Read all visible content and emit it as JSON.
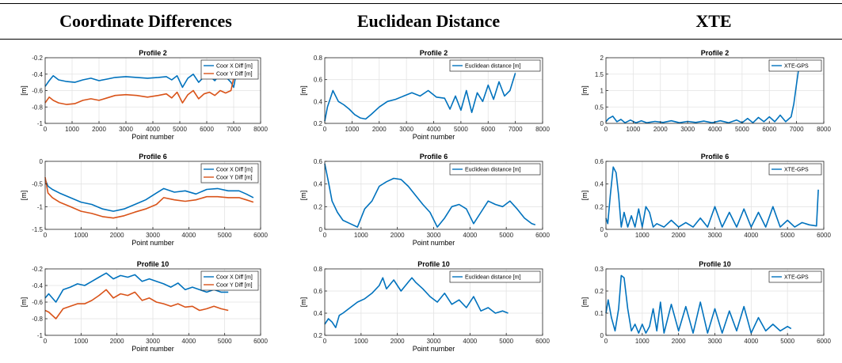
{
  "columns": [
    "Coordinate Differences",
    "Euclidean Distance",
    "XTE"
  ],
  "colors": {
    "blue": "#0072BD",
    "orange": "#D95319",
    "grid": "#e3e3e3",
    "axis": "#262626"
  },
  "chart_data": [
    {
      "type": "line",
      "title": "Profile 2",
      "xlabel": "Point number",
      "ylabel": "[m]",
      "xlim": [
        0,
        8000
      ],
      "ylim": [
        -1,
        -0.2
      ],
      "xticks": [
        0,
        1000,
        2000,
        3000,
        4000,
        5000,
        6000,
        7000,
        8000
      ],
      "yticks": [
        -1,
        -0.8,
        -0.6,
        -0.4,
        -0.2
      ],
      "legend_position": "top-right",
      "grid": true,
      "series": [
        {
          "name": "Coor X Diff [m]",
          "color": "#0072BD",
          "x": [
            0,
            150,
            300,
            500,
            800,
            1100,
            1400,
            1700,
            2000,
            2300,
            2600,
            3000,
            3400,
            3800,
            4200,
            4500,
            4700,
            4900,
            5100,
            5300,
            5500,
            5700,
            5900,
            6100,
            6300,
            6500,
            6700,
            6900,
            7000,
            7100
          ],
          "y": [
            -0.55,
            -0.48,
            -0.42,
            -0.47,
            -0.49,
            -0.5,
            -0.47,
            -0.45,
            -0.48,
            -0.46,
            -0.44,
            -0.43,
            -0.44,
            -0.45,
            -0.44,
            -0.43,
            -0.47,
            -0.42,
            -0.56,
            -0.45,
            -0.4,
            -0.5,
            -0.43,
            -0.42,
            -0.48,
            -0.4,
            -0.43,
            -0.5,
            -0.56,
            -0.38
          ]
        },
        {
          "name": "Coor Y Diff [m]",
          "color": "#D95319",
          "x": [
            0,
            150,
            300,
            500,
            800,
            1100,
            1400,
            1700,
            2000,
            2300,
            2600,
            3000,
            3400,
            3800,
            4200,
            4500,
            4700,
            4900,
            5100,
            5300,
            5500,
            5700,
            5900,
            6100,
            6300,
            6500,
            6700,
            6900,
            7000,
            7100
          ],
          "y": [
            -0.75,
            -0.68,
            -0.72,
            -0.75,
            -0.77,
            -0.76,
            -0.72,
            -0.7,
            -0.72,
            -0.69,
            -0.66,
            -0.65,
            -0.66,
            -0.68,
            -0.66,
            -0.64,
            -0.69,
            -0.62,
            -0.75,
            -0.65,
            -0.6,
            -0.7,
            -0.64,
            -0.62,
            -0.66,
            -0.6,
            -0.63,
            -0.6,
            -0.45,
            -0.26
          ]
        }
      ]
    },
    {
      "type": "line",
      "title": "Profile 2",
      "xlabel": "Point number",
      "ylabel": "[m]",
      "xlim": [
        0,
        8000
      ],
      "ylim": [
        0.2,
        0.8
      ],
      "xticks": [
        0,
        1000,
        2000,
        3000,
        4000,
        5000,
        6000,
        7000,
        8000
      ],
      "yticks": [
        0.2,
        0.4,
        0.6,
        0.8
      ],
      "legend_position": "top-right",
      "grid": true,
      "series": [
        {
          "name": "Euclidean distance [m]",
          "color": "#0072BD",
          "x": [
            0,
            100,
            300,
            500,
            700,
            900,
            1100,
            1300,
            1500,
            1700,
            2000,
            2300,
            2600,
            2900,
            3200,
            3500,
            3800,
            4100,
            4400,
            4600,
            4800,
            5000,
            5200,
            5400,
            5600,
            5800,
            6000,
            6200,
            6400,
            6600,
            6800,
            7000
          ],
          "y": [
            0.22,
            0.35,
            0.5,
            0.4,
            0.37,
            0.33,
            0.28,
            0.25,
            0.24,
            0.28,
            0.35,
            0.4,
            0.42,
            0.45,
            0.48,
            0.45,
            0.5,
            0.44,
            0.43,
            0.33,
            0.45,
            0.32,
            0.5,
            0.3,
            0.48,
            0.4,
            0.55,
            0.42,
            0.58,
            0.45,
            0.5,
            0.66
          ]
        }
      ]
    },
    {
      "type": "line",
      "title": "Profile 2",
      "xlabel": "",
      "ylabel": "[m]",
      "xlim": [
        0,
        8000
      ],
      "ylim": [
        0,
        2
      ],
      "xticks": [
        0,
        1000,
        2000,
        3000,
        4000,
        5000,
        6000,
        7000,
        8000
      ],
      "yticks": [
        0,
        0.5,
        1,
        1.5,
        2
      ],
      "legend_position": "top-right",
      "grid": true,
      "series": [
        {
          "name": "XTE-GPS",
          "color": "#0072BD",
          "x": [
            0,
            100,
            250,
            400,
            550,
            700,
            900,
            1100,
            1300,
            1500,
            1800,
            2100,
            2400,
            2700,
            3000,
            3300,
            3600,
            3900,
            4200,
            4500,
            4800,
            5000,
            5200,
            5400,
            5600,
            5800,
            6000,
            6200,
            6400,
            6600,
            6800,
            6900,
            7000,
            7100
          ],
          "y": [
            0.05,
            0.15,
            0.22,
            0.05,
            0.12,
            0.02,
            0.1,
            0.02,
            0.08,
            0.02,
            0.06,
            0.03,
            0.08,
            0.02,
            0.06,
            0.03,
            0.07,
            0.02,
            0.08,
            0.02,
            0.1,
            0.02,
            0.15,
            0.02,
            0.18,
            0.05,
            0.2,
            0.05,
            0.25,
            0.05,
            0.2,
            0.6,
            1.2,
            1.8
          ]
        }
      ]
    },
    {
      "type": "line",
      "title": "Profile 6",
      "xlabel": "Point number",
      "ylabel": "[m]",
      "xlim": [
        0,
        6000
      ],
      "ylim": [
        -1.5,
        0
      ],
      "xticks": [
        0,
        1000,
        2000,
        3000,
        4000,
        5000,
        6000
      ],
      "yticks": [
        -1.5,
        -1,
        -0.5,
        0
      ],
      "legend_position": "top-right",
      "grid": true,
      "series": [
        {
          "name": "Coor X Diff [m]",
          "color": "#0072BD",
          "x": [
            0,
            80,
            200,
            400,
            700,
            1000,
            1300,
            1600,
            1900,
            2200,
            2500,
            2800,
            3100,
            3300,
            3600,
            3900,
            4200,
            4500,
            4800,
            5100,
            5400,
            5600,
            5800
          ],
          "y": [
            -0.4,
            -0.55,
            -0.62,
            -0.7,
            -0.8,
            -0.9,
            -0.95,
            -1.05,
            -1.1,
            -1.05,
            -0.95,
            -0.85,
            -0.7,
            -0.6,
            -0.68,
            -0.65,
            -0.72,
            -0.62,
            -0.6,
            -0.65,
            -0.65,
            -0.72,
            -0.8
          ]
        },
        {
          "name": "Coor Y Diff [m]",
          "color": "#D95319",
          "x": [
            0,
            80,
            200,
            400,
            700,
            1000,
            1300,
            1600,
            1900,
            2200,
            2500,
            2800,
            3100,
            3300,
            3600,
            3900,
            4200,
            4500,
            4800,
            5100,
            5400,
            5600,
            5800
          ],
          "y": [
            -0.35,
            -0.7,
            -0.8,
            -0.9,
            -1.0,
            -1.1,
            -1.15,
            -1.22,
            -1.25,
            -1.2,
            -1.12,
            -1.05,
            -0.95,
            -0.8,
            -0.85,
            -0.88,
            -0.85,
            -0.78,
            -0.78,
            -0.8,
            -0.8,
            -0.85,
            -0.9
          ]
        }
      ]
    },
    {
      "type": "line",
      "title": "Profile 6",
      "xlabel": "Point number",
      "ylabel": "[m]",
      "xlim": [
        0,
        6000
      ],
      "ylim": [
        0,
        0.6
      ],
      "xticks": [
        0,
        1000,
        2000,
        3000,
        4000,
        5000,
        6000
      ],
      "yticks": [
        0,
        0.2,
        0.4,
        0.6
      ],
      "legend_position": "top-right",
      "grid": true,
      "series": [
        {
          "name": "Euclidean distance [m]",
          "color": "#0072BD",
          "x": [
            0,
            100,
            200,
            350,
            500,
            700,
            900,
            1100,
            1300,
            1500,
            1700,
            1900,
            2100,
            2300,
            2500,
            2700,
            2900,
            3100,
            3300,
            3500,
            3700,
            3900,
            4100,
            4300,
            4500,
            4700,
            4900,
            5100,
            5300,
            5500,
            5700,
            5800
          ],
          "y": [
            0.58,
            0.42,
            0.25,
            0.15,
            0.08,
            0.05,
            0.02,
            0.18,
            0.25,
            0.38,
            0.42,
            0.45,
            0.44,
            0.38,
            0.3,
            0.22,
            0.15,
            0.02,
            0.1,
            0.2,
            0.22,
            0.18,
            0.05,
            0.15,
            0.25,
            0.22,
            0.2,
            0.25,
            0.18,
            0.1,
            0.05,
            0.04
          ]
        }
      ]
    },
    {
      "type": "line",
      "title": "Profile 6",
      "xlabel": "",
      "ylabel": "[m]",
      "xlim": [
        0,
        6000
      ],
      "ylim": [
        0,
        0.6
      ],
      "xticks": [
        0,
        1000,
        2000,
        3000,
        4000,
        5000,
        6000
      ],
      "yticks": [
        0,
        0.2,
        0.4,
        0.6
      ],
      "legend_position": "top-right",
      "grid": true,
      "series": [
        {
          "name": "XTE-GPS",
          "color": "#0072BD",
          "x": [
            0,
            50,
            120,
            200,
            280,
            350,
            420,
            500,
            600,
            700,
            800,
            900,
            1000,
            1100,
            1200,
            1300,
            1400,
            1600,
            1800,
            2000,
            2200,
            2400,
            2600,
            2800,
            3000,
            3200,
            3400,
            3600,
            3800,
            4000,
            4200,
            4400,
            4600,
            4800,
            5000,
            5200,
            5400,
            5600,
            5800,
            5850
          ],
          "y": [
            0.1,
            0.05,
            0.3,
            0.55,
            0.5,
            0.3,
            0.02,
            0.15,
            0.02,
            0.12,
            0.02,
            0.18,
            0.02,
            0.2,
            0.15,
            0.02,
            0.05,
            0.02,
            0.08,
            0.02,
            0.06,
            0.02,
            0.1,
            0.02,
            0.2,
            0.02,
            0.15,
            0.02,
            0.18,
            0.02,
            0.15,
            0.02,
            0.2,
            0.02,
            0.08,
            0.02,
            0.06,
            0.04,
            0.03,
            0.35
          ]
        }
      ]
    },
    {
      "type": "line",
      "title": "Profile 10",
      "xlabel": "Point number",
      "ylabel": "[m]",
      "xlim": [
        0,
        6000
      ],
      "ylim": [
        -1,
        -0.2
      ],
      "xticks": [
        0,
        1000,
        2000,
        3000,
        4000,
        5000,
        6000
      ],
      "yticks": [
        -1,
        -0.8,
        -0.6,
        -0.4,
        -0.2
      ],
      "legend_position": "top-right",
      "grid": true,
      "series": [
        {
          "name": "Coor X Diff [m]",
          "color": "#0072BD",
          "x": [
            0,
            100,
            300,
            500,
            700,
            900,
            1100,
            1300,
            1500,
            1700,
            1900,
            2100,
            2300,
            2500,
            2700,
            2900,
            3100,
            3300,
            3500,
            3700,
            3900,
            4100,
            4300,
            4500,
            4700,
            4900,
            5100
          ],
          "y": [
            -0.55,
            -0.5,
            -0.6,
            -0.45,
            -0.42,
            -0.38,
            -0.4,
            -0.35,
            -0.3,
            -0.25,
            -0.32,
            -0.28,
            -0.3,
            -0.27,
            -0.35,
            -0.32,
            -0.35,
            -0.38,
            -0.42,
            -0.37,
            -0.45,
            -0.42,
            -0.45,
            -0.48,
            -0.45,
            -0.48,
            -0.48
          ]
        },
        {
          "name": "Coor Y Diff [m]",
          "color": "#D95319",
          "x": [
            0,
            100,
            300,
            500,
            700,
            900,
            1100,
            1300,
            1500,
            1700,
            1900,
            2100,
            2300,
            2500,
            2700,
            2900,
            3100,
            3300,
            3500,
            3700,
            3900,
            4100,
            4300,
            4500,
            4700,
            4900,
            5100
          ],
          "y": [
            -0.7,
            -0.72,
            -0.8,
            -0.68,
            -0.65,
            -0.62,
            -0.62,
            -0.58,
            -0.52,
            -0.45,
            -0.55,
            -0.5,
            -0.52,
            -0.48,
            -0.58,
            -0.55,
            -0.6,
            -0.62,
            -0.65,
            -0.62,
            -0.66,
            -0.65,
            -0.7,
            -0.68,
            -0.65,
            -0.68,
            -0.7
          ]
        }
      ]
    },
    {
      "type": "line",
      "title": "Profile 10",
      "xlabel": "Point number",
      "ylabel": "[m]",
      "xlim": [
        0,
        6000
      ],
      "ylim": [
        0.2,
        0.8
      ],
      "xticks": [
        0,
        1000,
        2000,
        3000,
        4000,
        5000,
        6000
      ],
      "yticks": [
        0.2,
        0.4,
        0.6,
        0.8
      ],
      "legend_position": "top-right",
      "grid": true,
      "series": [
        {
          "name": "Euclidean distance [m]",
          "color": "#0072BD",
          "x": [
            0,
            100,
            200,
            300,
            400,
            500,
            700,
            900,
            1100,
            1300,
            1500,
            1600,
            1700,
            1900,
            2100,
            2300,
            2400,
            2500,
            2700,
            2900,
            3100,
            3300,
            3500,
            3700,
            3900,
            4100,
            4300,
            4500,
            4700,
            4900,
            5050
          ],
          "y": [
            0.3,
            0.35,
            0.32,
            0.27,
            0.38,
            0.4,
            0.45,
            0.5,
            0.53,
            0.58,
            0.65,
            0.72,
            0.62,
            0.7,
            0.6,
            0.68,
            0.72,
            0.68,
            0.62,
            0.55,
            0.5,
            0.58,
            0.48,
            0.52,
            0.45,
            0.55,
            0.42,
            0.45,
            0.4,
            0.42,
            0.4
          ]
        }
      ]
    },
    {
      "type": "line",
      "title": "Profile 10",
      "xlabel": "",
      "ylabel": "[m]",
      "xlim": [
        0,
        6000
      ],
      "ylim": [
        0,
        0.3
      ],
      "xticks": [
        0,
        1000,
        2000,
        3000,
        4000,
        5000,
        6000
      ],
      "yticks": [
        0,
        0.1,
        0.2,
        0.3
      ],
      "legend_position": "top-right",
      "grid": true,
      "series": [
        {
          "name": "XTE-GPS",
          "color": "#0072BD",
          "x": [
            0,
            60,
            150,
            250,
            350,
            420,
            500,
            600,
            700,
            800,
            900,
            1000,
            1100,
            1200,
            1300,
            1400,
            1500,
            1600,
            1800,
            2000,
            2200,
            2400,
            2600,
            2800,
            3000,
            3200,
            3400,
            3600,
            3800,
            4000,
            4200,
            4400,
            4600,
            4800,
            5000,
            5100
          ],
          "y": [
            0.1,
            0.16,
            0.08,
            0.02,
            0.12,
            0.27,
            0.26,
            0.12,
            0.02,
            0.05,
            0.01,
            0.05,
            0.01,
            0.04,
            0.12,
            0.02,
            0.15,
            0.01,
            0.14,
            0.02,
            0.13,
            0.01,
            0.15,
            0.01,
            0.12,
            0.01,
            0.11,
            0.02,
            0.13,
            0.01,
            0.08,
            0.02,
            0.05,
            0.02,
            0.04,
            0.03
          ]
        }
      ]
    }
  ]
}
